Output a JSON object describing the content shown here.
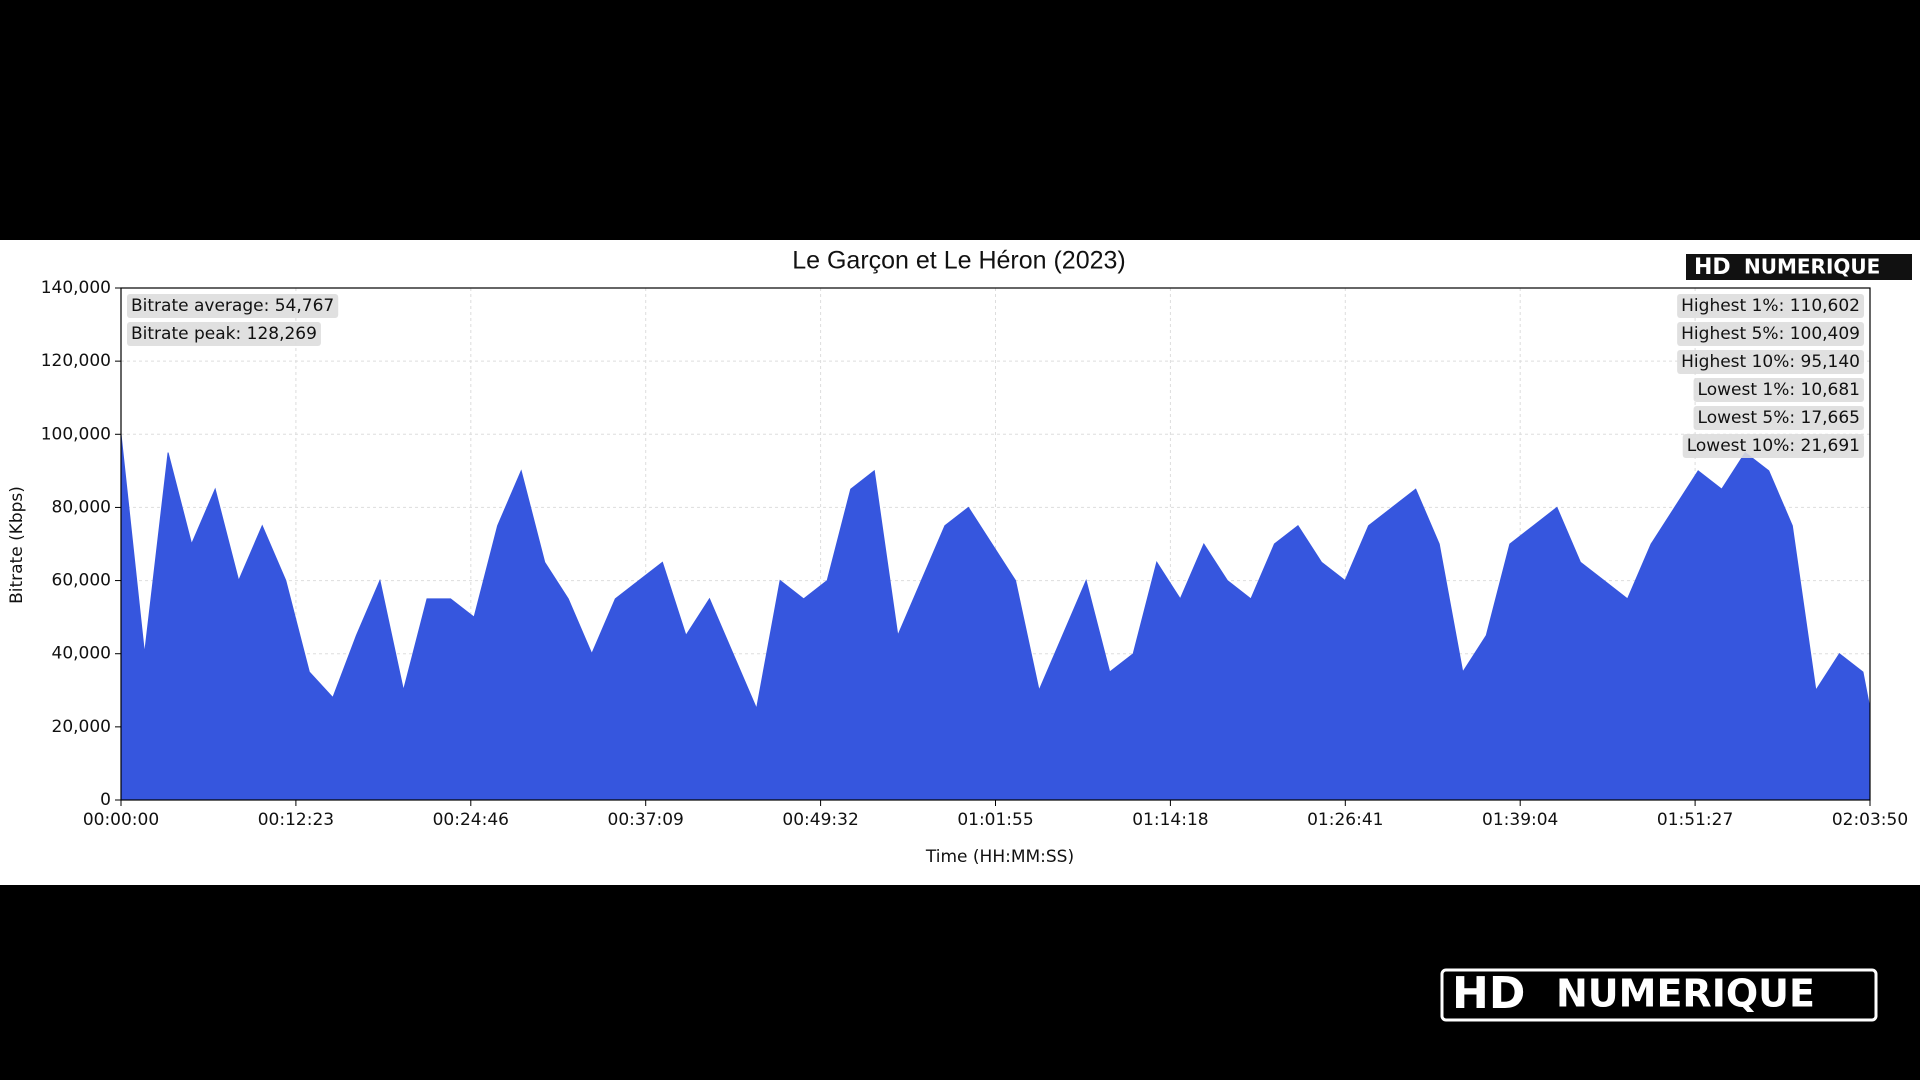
{
  "chart_data": {
    "type": "area",
    "title": "Le Garçon et Le Héron (2023)",
    "xlabel": "Time (HH:MM:SS)",
    "ylabel": "Bitrate (Kbps)",
    "color": "#3656de",
    "grid": true,
    "logo": {
      "hd": "HD",
      "name": "NUMERIQUE"
    },
    "stats_left": [
      "Bitrate average: 54,767",
      "Bitrate peak: 128,269"
    ],
    "stats_right": [
      "Highest 1%: 110,602",
      "Highest 5%: 100,409",
      "Highest 10%: 95,140",
      "Lowest 1%: 10,681",
      "Lowest 5%: 17,665",
      "Lowest 10%: 21,691"
    ],
    "xlim": [
      0,
      7430
    ],
    "xticks": [
      {
        "value": 0,
        "label": "00:00:00"
      },
      {
        "value": 743,
        "label": "00:12:23"
      },
      {
        "value": 1486,
        "label": "00:24:46"
      },
      {
        "value": 2229,
        "label": "00:37:09"
      },
      {
        "value": 2972,
        "label": "00:49:32"
      },
      {
        "value": 3715,
        "label": "01:01:55"
      },
      {
        "value": 4458,
        "label": "01:14:18"
      },
      {
        "value": 5201,
        "label": "01:26:41"
      },
      {
        "value": 5944,
        "label": "01:39:04"
      },
      {
        "value": 6687,
        "label": "01:51:27"
      },
      {
        "value": 7430,
        "label": "02:03:50"
      }
    ],
    "ylim": [
      0,
      140000
    ],
    "yticks": [
      0,
      {
        "value": 20000,
        "label": "20,000"
      },
      {
        "value": 40000,
        "label": "40,000"
      },
      {
        "value": 60000,
        "label": "60,000"
      },
      {
        "value": 80000,
        "label": "80,000"
      },
      {
        "value": 100000,
        "label": "100,000"
      },
      {
        "value": 120000,
        "label": "120,000"
      },
      {
        "value": 140000,
        "label": "140,000"
      }
    ],
    "x": [
      0,
      100,
      200,
      300,
      400,
      500,
      600,
      700,
      800,
      900,
      1000,
      1100,
      1200,
      1300,
      1400,
      1500,
      1600,
      1700,
      1800,
      1900,
      2000,
      2100,
      2200,
      2300,
      2400,
      2500,
      2600,
      2700,
      2800,
      2900,
      3000,
      3100,
      3200,
      3300,
      3400,
      3500,
      3600,
      3700,
      3800,
      3900,
      4000,
      4100,
      4200,
      4300,
      4400,
      4500,
      4600,
      4700,
      4800,
      4900,
      5000,
      5100,
      5200,
      5300,
      5400,
      5500,
      5600,
      5700,
      5800,
      5900,
      6000,
      6100,
      6200,
      6300,
      6400,
      6500,
      6600,
      6700,
      6800,
      6900,
      7000,
      7100,
      7200,
      7300,
      7400,
      7430
    ],
    "values": [
      100000,
      40000,
      95000,
      70000,
      85000,
      60000,
      75000,
      60000,
      35000,
      28000,
      45000,
      60000,
      30000,
      55000,
      55000,
      50000,
      75000,
      90000,
      65000,
      55000,
      40000,
      55000,
      60000,
      65000,
      45000,
      55000,
      40000,
      25000,
      60000,
      55000,
      60000,
      85000,
      90000,
      45000,
      60000,
      75000,
      80000,
      70000,
      60000,
      30000,
      45000,
      60000,
      35000,
      40000,
      65000,
      55000,
      70000,
      60000,
      55000,
      70000,
      75000,
      65000,
      60000,
      75000,
      80000,
      85000,
      70000,
      35000,
      45000,
      70000,
      75000,
      80000,
      65000,
      60000,
      55000,
      70000,
      80000,
      90000,
      85000,
      95000,
      90000,
      75000,
      30000,
      40000,
      35000,
      25000
    ]
  }
}
